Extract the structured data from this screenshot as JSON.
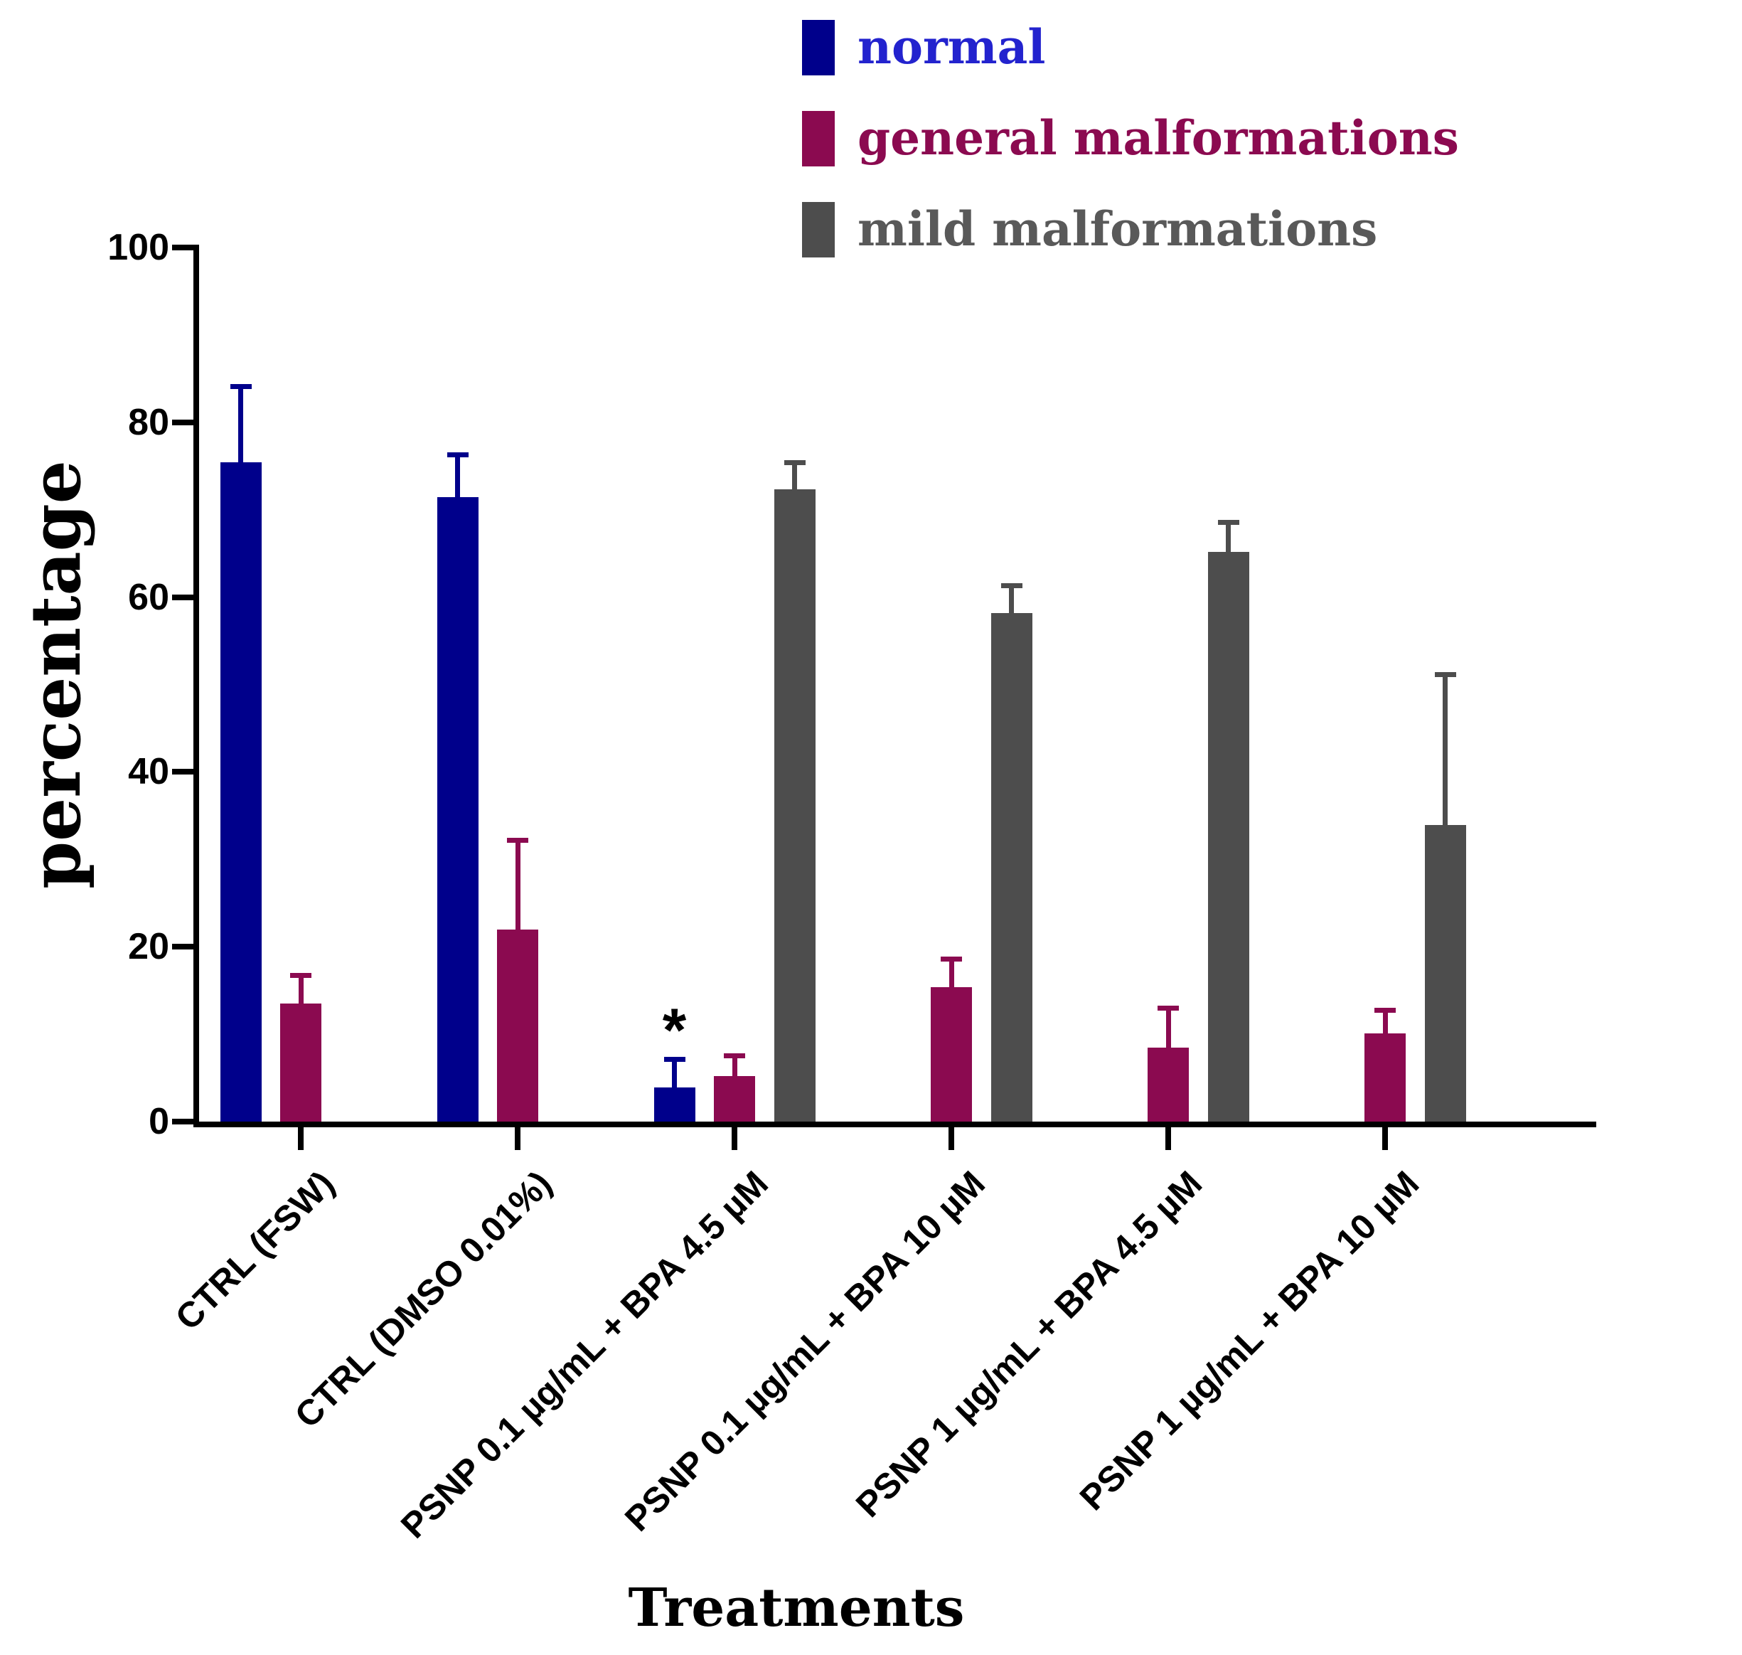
{
  "legend": [
    {
      "label": "normal",
      "swatch_color": "#00008B",
      "text_color": "#2323CE"
    },
    {
      "label": "general malformations",
      "swatch_color": "#8B0A50",
      "text_color": "#8B0A50"
    },
    {
      "label": "mild malformations",
      "swatch_color": "#4D4D4D",
      "text_color": "#595959"
    }
  ],
  "chart_data": {
    "type": "bar",
    "title": "",
    "xlabel": "Treatments",
    "ylabel": "percentage",
    "ylim": [
      0,
      100
    ],
    "yticks": [
      0,
      20,
      40,
      60,
      80,
      100
    ],
    "grid": false,
    "legend_position": "top-center",
    "categories": [
      "CTRL (FSW)",
      "CTRL (DMSO 0.01%)",
      "PSNP 0.1 µg/mL + BPA 4.5 µM",
      "PSNP 0.1 µg/mL + BPA 10 µM",
      "PSNP 1 µg/mL + BPA 4.5 µM",
      "PSNP 1 µg/mL + BPA 10 µM"
    ],
    "series": [
      {
        "name": "normal",
        "color": "#00008B",
        "values": [
          75.4,
          71.4,
          3.9,
          0,
          0,
          0
        ],
        "sd_plus": [
          9.0,
          5.2,
          3.5,
          0,
          0,
          0
        ]
      },
      {
        "name": "general malformations",
        "color": "#8B0A50",
        "values": [
          13.5,
          22.0,
          5.2,
          15.4,
          8.5,
          10.1
        ],
        "sd_plus": [
          3.5,
          10.5,
          2.6,
          3.5,
          4.8,
          2.9
        ]
      },
      {
        "name": "mild malformations",
        "color": "#4D4D4D",
        "values": [
          0,
          0,
          72.3,
          58.2,
          65.2,
          33.9
        ],
        "sd_plus": [
          0,
          0,
          3.4,
          3.4,
          3.6,
          17.5
        ]
      }
    ],
    "annotations": [
      {
        "text": "*",
        "category_index": 2,
        "series_index": 0,
        "meaning": "significance marker"
      }
    ]
  }
}
